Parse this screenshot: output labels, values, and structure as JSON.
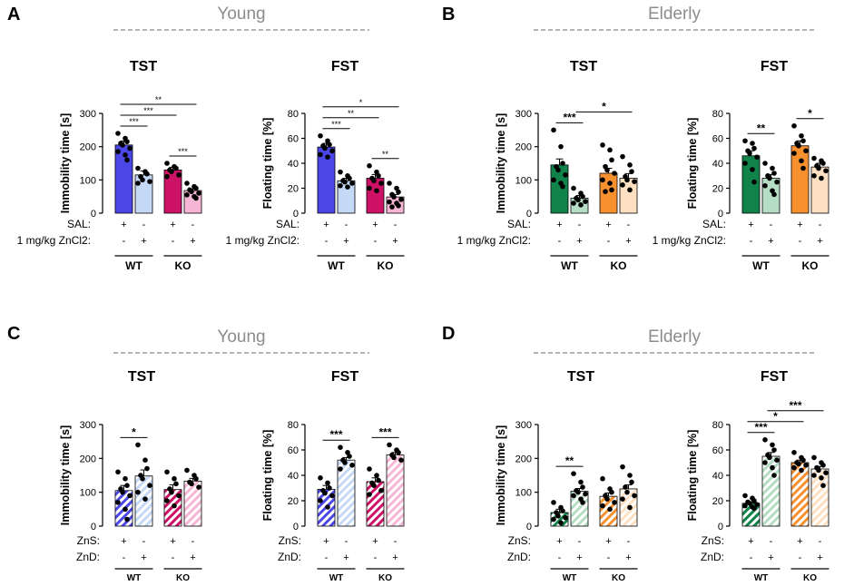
{
  "figure": {
    "panels": [
      {
        "letter": "A",
        "group": "Young",
        "charts": [
          0,
          1
        ]
      },
      {
        "letter": "B",
        "group": "Elderly",
        "charts": [
          2,
          3
        ]
      },
      {
        "letter": "C",
        "group": "Young",
        "charts": [
          4,
          5
        ]
      },
      {
        "letter": "D",
        "group": "Elderly",
        "charts": [
          6,
          7
        ]
      }
    ]
  },
  "chart_data": [
    {
      "type": "bar",
      "title": "TST",
      "ylabel": "Immobility time [s]",
      "ylim": [
        0,
        300
      ],
      "yticks": [
        "0",
        "100",
        "200",
        "300"
      ],
      "rows": [
        {
          "label": "SAL:",
          "marks": [
            "+",
            "-",
            "+",
            "-"
          ]
        },
        {
          "label": "1 mg/kg  ZnCl2:",
          "marks": [
            "-",
            "+",
            "-",
            "+"
          ]
        }
      ],
      "groups": [
        "WT",
        "KO"
      ],
      "bars": [
        {
          "value": 205,
          "sem": 12,
          "color": "#4b47e6",
          "hatch": false,
          "points": [
            240,
            225,
            215,
            210,
            205,
            195,
            185,
            175,
            160
          ]
        },
        {
          "value": 115,
          "sem": 12,
          "color": "#c5d8f6",
          "hatch": false,
          "points": [
            135,
            125,
            118,
            110,
            100,
            95,
            90
          ]
        },
        {
          "value": 130,
          "sem": 8,
          "color": "#cc1167",
          "hatch": false,
          "points": [
            150,
            140,
            135,
            130,
            125,
            115,
            110
          ]
        },
        {
          "value": 68,
          "sem": 5,
          "color": "#f7b6d6",
          "hatch": false,
          "points": [
            90,
            80,
            75,
            70,
            65,
            60,
            55,
            50,
            45
          ]
        }
      ],
      "sig": [
        {
          "from": 0,
          "to": 1,
          "label": "***"
        },
        {
          "from": 0,
          "to": 2,
          "label": "***"
        },
        {
          "from": 0,
          "to": 3,
          "label": "**"
        },
        {
          "from": 2,
          "to": 3,
          "label": "***"
        }
      ]
    },
    {
      "type": "bar",
      "title": "FST",
      "ylabel": "Floating time [%]",
      "ylim": [
        0,
        80
      ],
      "yticks": [
        "0",
        "20",
        "40",
        "60",
        "80"
      ],
      "rows": [
        {
          "label": "SAL:",
          "marks": [
            "+",
            "-",
            "+",
            "-"
          ]
        },
        {
          "label": "1 mg/kg  ZnCl2:",
          "marks": [
            "-",
            "+",
            "-",
            "+"
          ]
        }
      ],
      "groups": [
        "WT",
        "KO"
      ],
      "bars": [
        {
          "value": 53,
          "sem": 3,
          "color": "#4b47e6",
          "hatch": false,
          "points": [
            62,
            58,
            55,
            54,
            52,
            50,
            47,
            45
          ]
        },
        {
          "value": 26,
          "sem": 2,
          "color": "#c5d8f6",
          "hatch": false,
          "points": [
            33,
            30,
            28,
            26,
            25,
            24,
            22,
            21
          ]
        },
        {
          "value": 28,
          "sem": 3,
          "color": "#cc1167",
          "hatch": false,
          "points": [
            38,
            33,
            30,
            28,
            26,
            24,
            20,
            18
          ]
        },
        {
          "value": 13,
          "sem": 2,
          "color": "#f7b6d6",
          "hatch": false,
          "points": [
            24,
            20,
            17,
            15,
            13,
            11,
            9,
            8,
            6,
            5
          ]
        }
      ],
      "sig": [
        {
          "from": 0,
          "to": 1,
          "label": "***"
        },
        {
          "from": 0,
          "to": 2,
          "label": "**"
        },
        {
          "from": 0,
          "to": 3,
          "label": "*"
        },
        {
          "from": 2,
          "to": 3,
          "label": "**"
        }
      ]
    },
    {
      "type": "bar",
      "title": "TST",
      "ylabel": "Immobility time [s]",
      "ylim": [
        0,
        300
      ],
      "yticks": [
        "0",
        "100",
        "200",
        "300"
      ],
      "rows": [
        {
          "label": "SAL:",
          "marks": [
            "+",
            "-",
            "+",
            "-"
          ]
        },
        {
          "label": "1 mg/kg  ZnCl2:",
          "marks": [
            "-",
            "+",
            "-",
            "+"
          ]
        }
      ],
      "groups": [
        "WT",
        "KO"
      ],
      "bars": [
        {
          "value": 145,
          "sem": 18,
          "color": "#10834a",
          "hatch": false,
          "points": [
            250,
            200,
            150,
            140,
            130,
            115,
            100,
            90,
            80
          ]
        },
        {
          "value": 45,
          "sem": 8,
          "color": "#b4ddc4",
          "hatch": false,
          "points": [
            75,
            60,
            50,
            45,
            40,
            35,
            30,
            25
          ]
        },
        {
          "value": 120,
          "sem": 15,
          "color": "#f7902e",
          "hatch": false,
          "points": [
            205,
            190,
            160,
            140,
            130,
            120,
            100,
            90,
            70,
            65
          ]
        },
        {
          "value": 105,
          "sem": 14,
          "color": "#fddfc2",
          "hatch": false,
          "points": [
            170,
            145,
            125,
            110,
            100,
            95,
            85,
            70
          ]
        }
      ],
      "sig": [
        {
          "from": 0,
          "to": 1,
          "label": "***"
        },
        {
          "from": 1,
          "to": 3,
          "label": "*"
        }
      ]
    },
    {
      "type": "bar",
      "title": "FST",
      "ylabel": "Floating time [%]",
      "ylim": [
        0,
        80
      ],
      "yticks": [
        "0",
        "20",
        "40",
        "60",
        "80"
      ],
      "rows": [
        {
          "label": "SAL:",
          "marks": [
            "+",
            "-",
            "+",
            "-"
          ]
        },
        {
          "label": "1 mg/kg  ZnCl2:",
          "marks": [
            "-",
            "+",
            "-",
            "+"
          ]
        }
      ],
      "groups": [
        "WT",
        "KO"
      ],
      "bars": [
        {
          "value": 46,
          "sem": 4,
          "color": "#10834a",
          "hatch": false,
          "points": [
            58,
            56,
            52,
            50,
            48,
            45,
            40,
            35,
            25
          ]
        },
        {
          "value": 28,
          "sem": 3,
          "color": "#b4ddc4",
          "hatch": false,
          "points": [
            40,
            36,
            32,
            30,
            28,
            25,
            22,
            18,
            15
          ]
        },
        {
          "value": 54,
          "sem": 4,
          "color": "#f7902e",
          "hatch": false,
          "points": [
            70,
            62,
            58,
            56,
            54,
            50,
            48,
            42,
            36
          ]
        },
        {
          "value": 37,
          "sem": 3,
          "color": "#fddfc2",
          "hatch": false,
          "points": [
            44,
            42,
            40,
            38,
            36,
            34,
            30,
            28
          ]
        }
      ],
      "sig": [
        {
          "from": 0,
          "to": 1,
          "label": "**"
        },
        {
          "from": 2,
          "to": 3,
          "label": "*"
        }
      ]
    },
    {
      "type": "bar",
      "title": "TST",
      "ylabel": "Immobility time [s]",
      "ylim": [
        0,
        300
      ],
      "yticks": [
        "0",
        "100",
        "200",
        "300"
      ],
      "rows": [
        {
          "label": "ZnS:",
          "marks": [
            "+",
            "-",
            "+",
            "-"
          ]
        },
        {
          "label": "ZnD:",
          "marks": [
            "-",
            "+",
            "-",
            "+"
          ]
        }
      ],
      "groups": [
        "WT",
        "KO"
      ],
      "bars": [
        {
          "value": 105,
          "sem": 15,
          "color": "#4b47e6",
          "hatch": true,
          "points": [
            160,
            140,
            120,
            110,
            100,
            90,
            70,
            50,
            20
          ]
        },
        {
          "value": 148,
          "sem": 18,
          "color": "#c5d8f6",
          "hatch": true,
          "points": [
            240,
            195,
            170,
            150,
            140,
            120,
            100,
            80
          ]
        },
        {
          "value": 108,
          "sem": 14,
          "color": "#cc1167",
          "hatch": true,
          "points": [
            160,
            140,
            125,
            110,
            100,
            90,
            75,
            60
          ]
        },
        {
          "value": 133,
          "sem": 8,
          "color": "#f7b6d6",
          "hatch": true,
          "points": [
            165,
            150,
            140,
            130,
            125,
            115
          ]
        }
      ],
      "sig": [
        {
          "from": 0,
          "to": 1,
          "label": "*"
        }
      ]
    },
    {
      "type": "bar",
      "title": "FST",
      "ylabel": "Floating time [%]",
      "ylim": [
        0,
        80
      ],
      "yticks": [
        "0",
        "20",
        "40",
        "60",
        "80"
      ],
      "rows": [
        {
          "label": "ZnS:",
          "marks": [
            "+",
            "-",
            "+",
            "-"
          ]
        },
        {
          "label": "ZnD:",
          "marks": [
            "-",
            "+",
            "-",
            "+"
          ]
        }
      ],
      "groups": [
        "WT",
        "KO"
      ],
      "bars": [
        {
          "value": 29,
          "sem": 3,
          "color": "#4b47e6",
          "hatch": true,
          "points": [
            38,
            34,
            30,
            28,
            26,
            24,
            20,
            15
          ]
        },
        {
          "value": 52,
          "sem": 2,
          "color": "#c5d8f6",
          "hatch": true,
          "points": [
            62,
            58,
            55,
            52,
            50,
            48,
            45
          ]
        },
        {
          "value": 35,
          "sem": 3,
          "color": "#cc1167",
          "hatch": true,
          "points": [
            45,
            40,
            36,
            34,
            32,
            28,
            25
          ]
        },
        {
          "value": 56,
          "sem": 2,
          "color": "#f7b6d6",
          "hatch": true,
          "points": [
            64,
            60,
            58,
            56,
            54,
            52
          ]
        }
      ],
      "sig": [
        {
          "from": 0,
          "to": 1,
          "label": "***"
        },
        {
          "from": 2,
          "to": 3,
          "label": "***"
        }
      ]
    },
    {
      "type": "bar",
      "title": "TST",
      "ylabel": "Immobility time [s]",
      "ylim": [
        0,
        300
      ],
      "yticks": [
        "0",
        "100",
        "200",
        "300"
      ],
      "rows": [
        {
          "label": "ZnS:",
          "marks": [
            "+",
            "-",
            "+",
            "-"
          ]
        },
        {
          "label": "ZnD:",
          "marks": [
            "-",
            "+",
            "-",
            "+"
          ]
        }
      ],
      "groups": [
        "WT",
        "KO"
      ],
      "bars": [
        {
          "value": 40,
          "sem": 10,
          "color": "#10834a",
          "hatch": true,
          "points": [
            70,
            55,
            45,
            40,
            30,
            25,
            20,
            10
          ]
        },
        {
          "value": 103,
          "sem": 8,
          "color": "#b4ddc4",
          "hatch": true,
          "points": [
            155,
            130,
            115,
            105,
            100,
            95,
            90,
            80,
            70
          ]
        },
        {
          "value": 88,
          "sem": 10,
          "color": "#f7902e",
          "hatch": true,
          "points": [
            140,
            110,
            100,
            90,
            80,
            70,
            60,
            50
          ]
        },
        {
          "value": 110,
          "sem": 12,
          "color": "#fddfc2",
          "hatch": true,
          "points": [
            175,
            150,
            130,
            115,
            100,
            90,
            80,
            55
          ]
        }
      ],
      "sig": [
        {
          "from": 0,
          "to": 1,
          "label": "**"
        }
      ]
    },
    {
      "type": "bar",
      "title": "FST",
      "ylabel": "Floating time [%]",
      "ylim": [
        0,
        80
      ],
      "yticks": [
        "0",
        "20",
        "40",
        "60",
        "80"
      ],
      "rows": [
        {
          "label": "ZnS:",
          "marks": [
            "+",
            "-",
            "+",
            "-"
          ]
        },
        {
          "label": "ZnD:",
          "marks": [
            "-",
            "+",
            "-",
            "+"
          ]
        }
      ],
      "groups": [
        "WT",
        "KO"
      ],
      "bars": [
        {
          "value": 18,
          "sem": 1,
          "color": "#10834a",
          "hatch": true,
          "points": [
            24,
            22,
            20,
            19,
            18,
            17,
            16,
            15,
            14
          ]
        },
        {
          "value": 55,
          "sem": 3,
          "color": "#b4ddc4",
          "hatch": true,
          "points": [
            68,
            64,
            60,
            56,
            54,
            52,
            50,
            46,
            40
          ]
        },
        {
          "value": 50,
          "sem": 2,
          "color": "#f7902e",
          "hatch": true,
          "points": [
            58,
            54,
            52,
            50,
            49,
            48,
            46,
            44
          ]
        },
        {
          "value": 45,
          "sem": 2,
          "color": "#fddfc2",
          "hatch": true,
          "points": [
            54,
            50,
            48,
            46,
            44,
            42,
            40,
            38,
            32
          ]
        }
      ],
      "sig": [
        {
          "from": 0,
          "to": 1,
          "label": "***"
        },
        {
          "from": 0,
          "to": 2,
          "label": "*"
        },
        {
          "from": 1,
          "to": 3,
          "label": "***"
        }
      ]
    }
  ]
}
